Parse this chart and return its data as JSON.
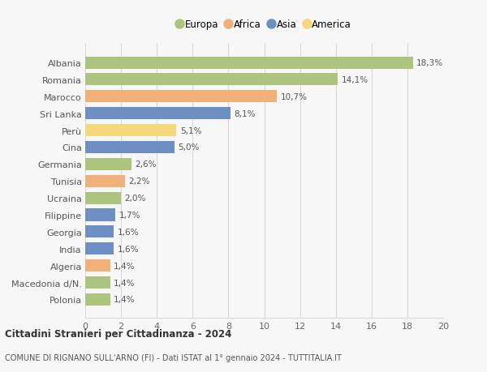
{
  "categories": [
    "Albania",
    "Romania",
    "Marocco",
    "Sri Lanka",
    "Perù",
    "Cina",
    "Germania",
    "Tunisia",
    "Ucraina",
    "Filippine",
    "Georgia",
    "India",
    "Algeria",
    "Macedonia d/N.",
    "Polonia"
  ],
  "values": [
    18.3,
    14.1,
    10.7,
    8.1,
    5.1,
    5.0,
    2.6,
    2.2,
    2.0,
    1.7,
    1.6,
    1.6,
    1.4,
    1.4,
    1.4
  ],
  "labels": [
    "18,3%",
    "14,1%",
    "10,7%",
    "8,1%",
    "5,1%",
    "5,0%",
    "2,6%",
    "2,2%",
    "2,0%",
    "1,7%",
    "1,6%",
    "1,6%",
    "1,4%",
    "1,4%",
    "1,4%"
  ],
  "continents": [
    "Europa",
    "Europa",
    "Africa",
    "Asia",
    "America",
    "Asia",
    "Europa",
    "Africa",
    "Europa",
    "Asia",
    "Asia",
    "Asia",
    "Africa",
    "Europa",
    "Europa"
  ],
  "continent_colors": {
    "Europa": "#adc47e",
    "Africa": "#f0b07a",
    "Asia": "#6d8fc4",
    "America": "#f5d87a"
  },
  "legend_order": [
    "Europa",
    "Africa",
    "Asia",
    "America"
  ],
  "title1": "Cittadini Stranieri per Cittadinanza - 2024",
  "title2": "COMUNE DI RIGNANO SULL'ARNO (FI) - Dati ISTAT al 1° gennaio 2024 - TUTTITALIA.IT",
  "xlim": [
    0,
    20
  ],
  "xticks": [
    0,
    2,
    4,
    6,
    8,
    10,
    12,
    14,
    16,
    18,
    20
  ],
  "background_color": "#f7f7f7",
  "grid_color": "#d8d8d8",
  "bar_height": 0.72
}
